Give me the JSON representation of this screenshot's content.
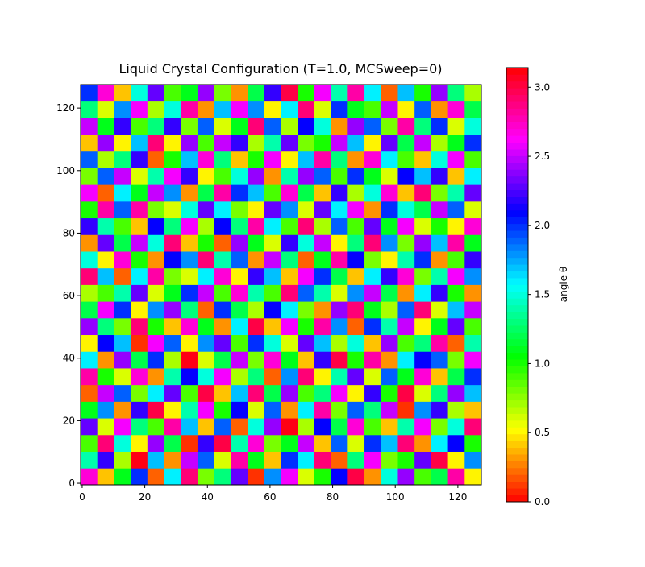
{
  "chart_data": {
    "type": "heatmap",
    "title": "Liquid Crystal Configuration (T=1.0, MCSweep=0)",
    "colormap": "hsv",
    "xlim": [
      -0.5,
      127.5
    ],
    "ylim": [
      -0.5,
      127.5
    ],
    "xticks": [
      0,
      20,
      40,
      60,
      80,
      100,
      120
    ],
    "yticks": [
      0,
      20,
      40,
      60,
      80,
      100,
      120
    ],
    "colorbar": {
      "label": "angle θ",
      "lim": [
        0,
        3.14159
      ],
      "ticks": [
        {
          "value": 0,
          "label": "0.0"
        },
        {
          "value": 0.5,
          "label": "0.5"
        },
        {
          "value": 1,
          "label": "1.0"
        },
        {
          "value": 1.5,
          "label": "1.5"
        },
        {
          "value": 2,
          "label": "2.0"
        },
        {
          "value": 2.5,
          "label": "2.5"
        },
        {
          "value": 3,
          "label": "3.0"
        }
      ]
    },
    "z": [
      [
        2.7,
        0.4,
        1.1,
        2.0,
        0.2,
        1.6,
        2.9,
        0.8,
        1.3,
        2.3,
        0.1,
        1.8,
        2.6,
        0.6,
        1.0,
        2.1,
        3.0,
        0.3,
        1.5,
        2.4,
        0.9,
        1.2,
        2.8,
        0.5
      ],
      [
        1.4,
        2.2,
        0.7,
        3.1,
        1.7,
        0.3,
        2.5,
        1.9,
        0.6,
        2.8,
        1.1,
        0.4,
        2.0,
        1.6,
        2.9,
        0.2,
        1.3,
        2.6,
        0.8,
        1.0,
        2.3,
        3.0,
        0.5,
        1.8
      ],
      [
        0.9,
        2.9,
        1.5,
        0.5,
        2.4,
        1.2,
        0.1,
        2.2,
        3.0,
        1.4,
        2.7,
        0.8,
        1.1,
        2.5,
        0.4,
        1.9,
        0.6,
        2.0,
        1.7,
        2.9,
        0.3,
        1.6,
        2.1,
        1.0
      ],
      [
        2.3,
        0.6,
        2.6,
        1.3,
        0.9,
        2.8,
        1.7,
        0.4,
        1.9,
        0.2,
        1.5,
        2.4,
        3.1,
        0.7,
        2.1,
        1.2,
        2.7,
        0.9,
        0.4,
        1.4,
        2.6,
        0.8,
        1.5,
        2.9
      ],
      [
        1.1,
        1.8,
        0.3,
        2.2,
        3.0,
        0.5,
        1.4,
        2.6,
        1.0,
        2.1,
        0.6,
        1.9,
        0.3,
        1.6,
        2.8,
        0.8,
        1.9,
        1.3,
        2.5,
        0.1,
        1.8,
        2.2,
        0.7,
        0.4
      ],
      [
        0.2,
        2.5,
        1.9,
        0.8,
        1.6,
        2.3,
        0.9,
        3.0,
        0.4,
        1.7,
        2.9,
        1.2,
        2.4,
        0.9,
        1.3,
        2.6,
        0.5,
        2.2,
        1.0,
        3.0,
        0.6,
        1.3,
        2.4,
        1.7
      ],
      [
        2.8,
        1.0,
        0.6,
        2.7,
        0.3,
        1.4,
        2.1,
        1.5,
        2.6,
        0.7,
        1.3,
        0.2,
        1.8,
        2.9,
        0.5,
        1.4,
        2.3,
        0.6,
        1.9,
        1.1,
        2.7,
        0.4,
        1.2,
        2.0
      ],
      [
        1.6,
        0.3,
        2.4,
        1.2,
        2.0,
        0.7,
        3.1,
        0.6,
        1.2,
        2.5,
        0.8,
        2.7,
        1.1,
        0.4,
        2.2,
        3.0,
        1.0,
        2.8,
        0.3,
        1.6,
        2.1,
        1.9,
        0.8,
        2.6
      ],
      [
        0.5,
        2.1,
        1.7,
        0.1,
        2.6,
        1.9,
        0.5,
        1.8,
        2.3,
        0.9,
        2.0,
        1.5,
        0.6,
        2.3,
        1.7,
        0.7,
        1.5,
        0.4,
        2.4,
        0.9,
        1.3,
        2.8,
        0.2,
        1.4
      ],
      [
        2.4,
        1.3,
        0.8,
        2.9,
        1.0,
        0.4,
        2.7,
        1.1,
        0.3,
        1.6,
        3.0,
        0.4,
        2.6,
        1.0,
        2.8,
        1.8,
        0.2,
        2.0,
        1.4,
        2.5,
        0.5,
        1.1,
        2.3,
        0.9
      ],
      [
        1.2,
        2.6,
        2.0,
        0.5,
        1.8,
        2.4,
        1.3,
        0.2,
        2.0,
        1.2,
        0.7,
        2.1,
        1.6,
        0.8,
        0.3,
        2.4,
        2.9,
        1.1,
        0.7,
        1.9,
        2.9,
        0.6,
        1.7,
        2.5
      ],
      [
        0.7,
        0.9,
        1.4,
        2.3,
        0.6,
        1.1,
        2.0,
        2.5,
        0.9,
        2.7,
        1.4,
        0.9,
        2.9,
        1.9,
        1.4,
        0.6,
        1.8,
        2.5,
        1.2,
        0.3,
        1.6,
        2.2,
        1.0,
        0.3
      ],
      [
        2.9,
        1.7,
        0.2,
        1.6,
        2.8,
        0.8,
        0.6,
        1.6,
        2.7,
        0.5,
        2.2,
        1.7,
        0.4,
        2.6,
        2.0,
        1.2,
        0.4,
        1.6,
        2.2,
        2.7,
        0.8,
        1.4,
        2.6,
        1.8
      ],
      [
        1.5,
        0.5,
        2.7,
        1.0,
        0.3,
        2.1,
        1.8,
        2.9,
        1.4,
        1.9,
        0.3,
        2.5,
        1.3,
        0.2,
        1.1,
        2.8,
        2.1,
        0.8,
        0.5,
        1.4,
        2.0,
        0.3,
        0.9,
        2.2
      ],
      [
        0.3,
        2.3,
        1.2,
        2.5,
        1.5,
        2.9,
        0.4,
        1.0,
        0.2,
        2.4,
        1.1,
        0.6,
        2.2,
        1.5,
        2.5,
        0.5,
        1.3,
        2.9,
        1.8,
        0.8,
        2.4,
        1.7,
        2.8,
        1.1
      ],
      [
        2.2,
        1.4,
        0.9,
        0.4,
        2.1,
        1.3,
        2.6,
        0.7,
        2.1,
        1.3,
        2.8,
        1.6,
        0.9,
        2.9,
        0.7,
        1.9,
        0.9,
        2.3,
        1.1,
        2.6,
        0.6,
        1.0,
        0.5,
        2.7
      ],
      [
        1.0,
        2.8,
        1.9,
        2.8,
        0.8,
        0.6,
        1.5,
        2.3,
        1.6,
        0.8,
        0.5,
        2.3,
        1.8,
        0.6,
        2.3,
        1.6,
        2.6,
        0.3,
        2.0,
        1.5,
        1.2,
        2.5,
        1.9,
        0.6
      ],
      [
        2.6,
        0.2,
        1.6,
        1.1,
        2.5,
        1.8,
        0.3,
        1.2,
        2.8,
        2.0,
        1.7,
        0.9,
        2.7,
        1.2,
        0.4,
        2.2,
        0.7,
        1.5,
        2.7,
        0.4,
        2.9,
        0.8,
        1.4,
        2.3
      ],
      [
        0.8,
        1.9,
        2.5,
        0.6,
        1.4,
        2.6,
        2.2,
        0.5,
        0.9,
        1.5,
        2.4,
        0.3,
        1.4,
        2.4,
        1.9,
        0.9,
        2.0,
        1.1,
        0.6,
        2.1,
        1.7,
        2.2,
        0.4,
        1.6
      ],
      [
        1.9,
        0.7,
        1.3,
        2.2,
        0.2,
        1.0,
        1.7,
        2.7,
        1.3,
        0.4,
        1.0,
        2.6,
        0.5,
        1.7,
        2.8,
        1.3,
        0.3,
        2.7,
        1.6,
        0.9,
        0.4,
        1.5,
        2.6,
        0.9
      ],
      [
        0.4,
        2.4,
        0.5,
        1.7,
        2.9,
        0.5,
        2.4,
        0.9,
        2.5,
        2.2,
        0.7,
        1.4,
        2.3,
        0.8,
        1.0,
        2.5,
        1.7,
        0.5,
        2.3,
        1.2,
        2.5,
        0.7,
        1.1,
        2.0
      ],
      [
        2.5,
        1.1,
        2.2,
        0.9,
        1.3,
        2.2,
        0.8,
        1.9,
        0.6,
        1.1,
        2.9,
        1.9,
        0.7,
        2.1,
        1.5,
        0.3,
        2.4,
        1.9,
        0.8,
        2.8,
        1.3,
        2.0,
        0.6,
        1.5
      ],
      [
        1.3,
        0.6,
        1.8,
        2.6,
        0.7,
        1.5,
        2.8,
        0.3,
        1.7,
        2.6,
        1.8,
        0.5,
        1.6,
        2.9,
        0.6,
        2.0,
        1.1,
        0.9,
        2.5,
        0.5,
        1.9,
        0.3,
        2.7,
        1.2
      ],
      [
        2.0,
        2.7,
        0.4,
        1.5,
        2.3,
        0.9,
        1.1,
        2.4,
        0.8,
        0.3,
        1.2,
        2.2,
        3.0,
        1.0,
        2.6,
        1.4,
        2.8,
        1.6,
        0.2,
        1.7,
        1.0,
        2.4,
        1.3,
        0.7
      ]
    ]
  }
}
